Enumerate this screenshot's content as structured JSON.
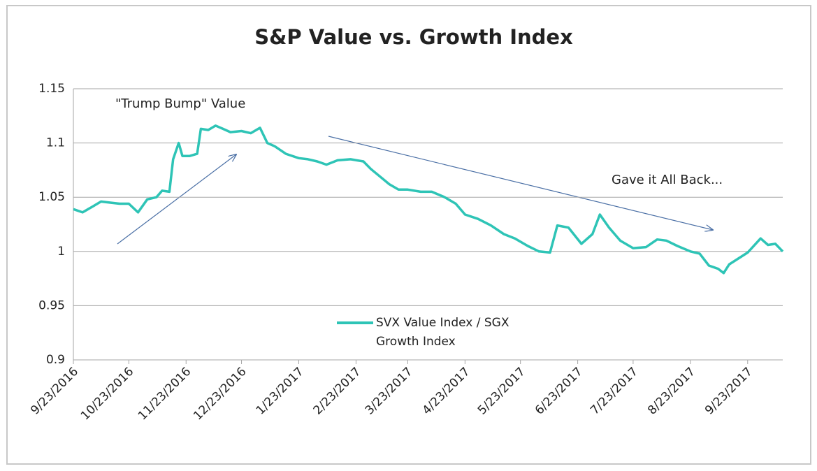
{
  "chart_data": {
    "type": "line",
    "title": "S&P Value vs. Growth Index",
    "annotations": [
      "\"Trump Bump\" Value",
      "Gave it All Back..."
    ],
    "x": [
      "2016-09-23",
      "2016-09-28",
      "2016-10-03",
      "2016-10-08",
      "2016-10-13",
      "2016-10-18",
      "2016-10-23",
      "2016-10-28",
      "2016-11-02",
      "2016-11-07",
      "2016-11-10",
      "2016-11-14",
      "2016-11-16",
      "2016-11-19",
      "2016-11-21",
      "2016-11-25",
      "2016-11-29",
      "2016-12-01",
      "2016-12-05",
      "2016-12-09",
      "2016-12-13",
      "2016-12-17",
      "2016-12-23",
      "2016-12-28",
      "2017-01-02",
      "2017-01-06",
      "2017-01-10",
      "2017-01-16",
      "2017-01-23",
      "2017-01-28",
      "2017-02-02",
      "2017-02-07",
      "2017-02-13",
      "2017-02-20",
      "2017-02-27",
      "2017-03-03",
      "2017-03-08",
      "2017-03-13",
      "2017-03-18",
      "2017-03-23",
      "2017-03-30",
      "2017-04-05",
      "2017-04-12",
      "2017-04-18",
      "2017-04-23",
      "2017-04-30",
      "2017-05-07",
      "2017-05-14",
      "2017-05-20",
      "2017-05-27",
      "2017-06-02",
      "2017-06-08",
      "2017-06-12",
      "2017-06-18",
      "2017-06-25",
      "2017-07-01",
      "2017-07-05",
      "2017-07-10",
      "2017-07-16",
      "2017-07-23",
      "2017-07-30",
      "2017-08-05",
      "2017-08-10",
      "2017-08-16",
      "2017-08-23",
      "2017-08-28",
      "2017-09-02",
      "2017-09-07",
      "2017-09-10",
      "2017-09-13",
      "2017-09-23",
      "2017-09-30",
      "2017-10-04",
      "2017-10-08",
      "2017-10-12"
    ],
    "series": [
      {
        "name": "SVX Value Index / SGX Growth Index",
        "color": "#2ec4b6",
        "values": [
          1.039,
          1.036,
          1.041,
          1.046,
          1.045,
          1.044,
          1.044,
          1.036,
          1.048,
          1.05,
          1.056,
          1.055,
          1.085,
          1.1,
          1.088,
          1.088,
          1.09,
          1.113,
          1.112,
          1.116,
          1.113,
          1.11,
          1.111,
          1.109,
          1.114,
          1.1,
          1.097,
          1.09,
          1.086,
          1.085,
          1.083,
          1.08,
          1.084,
          1.085,
          1.083,
          1.076,
          1.069,
          1.062,
          1.057,
          1.057,
          1.055,
          1.055,
          1.05,
          1.044,
          1.034,
          1.03,
          1.024,
          1.016,
          1.012,
          1.005,
          1.0,
          0.999,
          1.024,
          1.022,
          1.007,
          1.016,
          1.034,
          1.022,
          1.01,
          1.003,
          1.004,
          1.011,
          1.01,
          1.005,
          1.0,
          0.998,
          0.987,
          0.984,
          0.98,
          0.988,
          0.999,
          1.012,
          1.006,
          1.007,
          1.0
        ]
      }
    ],
    "xlim": [
      "2016-09-23",
      "2017-10-12"
    ],
    "xticks": [
      {
        "value": "2016-09-23",
        "label": "9/23/2016"
      },
      {
        "value": "2016-10-23",
        "label": "10/23/2016"
      },
      {
        "value": "2016-11-23",
        "label": "11/23/2016"
      },
      {
        "value": "2016-12-23",
        "label": "12/23/2016"
      },
      {
        "value": "2017-01-23",
        "label": "1/23/2017"
      },
      {
        "value": "2017-02-23",
        "label": "2/23/2017"
      },
      {
        "value": "2017-03-23",
        "label": "3/23/2017"
      },
      {
        "value": "2017-04-23",
        "label": "4/23/2017"
      },
      {
        "value": "2017-05-23",
        "label": "5/23/2017"
      },
      {
        "value": "2017-06-23",
        "label": "6/23/2017"
      },
      {
        "value": "2017-07-23",
        "label": "7/23/2017"
      },
      {
        "value": "2017-08-23",
        "label": "8/23/2017"
      },
      {
        "value": "2017-09-23",
        "label": "9/23/2017"
      }
    ],
    "ylim": [
      0.9,
      1.15
    ],
    "yticks": [
      0.9,
      0.95,
      1,
      1.05,
      1.1,
      1.15
    ],
    "grid": true
  }
}
